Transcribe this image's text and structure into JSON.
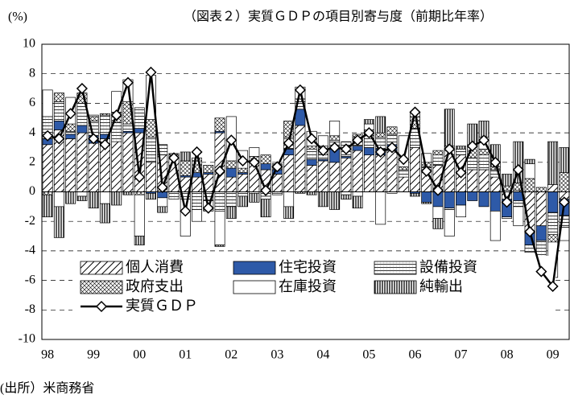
{
  "chart_data": {
    "type": "stacked_bar_line",
    "title": "（図表２）実質ＧＤＰの項目別寄与度（前期比年率）",
    "y_label": "(%)",
    "source": "(出所）米商務省",
    "categories": [
      "98",
      null,
      null,
      null,
      "99",
      null,
      null,
      null,
      "00",
      null,
      null,
      null,
      "01",
      null,
      null,
      null,
      "02",
      null,
      null,
      null,
      "03",
      null,
      null,
      null,
      "04",
      null,
      null,
      null,
      "05",
      null,
      null,
      null,
      "06",
      null,
      null,
      null,
      "07",
      null,
      null,
      null,
      "08",
      null,
      null,
      null,
      "09",
      null
    ],
    "ylim": [
      -10,
      10
    ],
    "yticks": [
      -10,
      -8,
      -6,
      -4,
      -2,
      0,
      2,
      4,
      6,
      8,
      10
    ],
    "grid": true,
    "series": [
      {
        "name": "個人消費",
        "kind": "bar",
        "color": "#000000",
        "pattern": "diagonal",
        "values": [
          3.2,
          4.2,
          3.6,
          4.0,
          3.3,
          3.6,
          3.4,
          4.0,
          4.0,
          2.0,
          2.5,
          2.3,
          1.0,
          1.0,
          1.2,
          4.0,
          1.0,
          1.2,
          2.0,
          1.5,
          1.2,
          2.5,
          4.5,
          1.8,
          2.1,
          2.0,
          2.3,
          2.8,
          2.5,
          2.5,
          2.8,
          1.0,
          3.0,
          1.5,
          1.8,
          2.8,
          2.5,
          1.5,
          1.5,
          1.0,
          -0.5,
          0.1,
          -2.8,
          -2.3,
          0.5,
          -0.5
        ]
      },
      {
        "name": "住宅投資",
        "kind": "bar",
        "color": "#2e5aa8",
        "pattern": "solid",
        "values": [
          0.4,
          0.6,
          0.3,
          0.5,
          0.5,
          0.3,
          0.0,
          0.1,
          0.3,
          -0.1,
          -0.4,
          0.0,
          0.1,
          0.3,
          0.1,
          0.1,
          0.6,
          0.1,
          0.1,
          0.4,
          0.3,
          0.4,
          1.1,
          0.4,
          0.1,
          0.9,
          0.1,
          0.3,
          0.5,
          0.4,
          0.4,
          0.0,
          -0.1,
          -0.7,
          -1.0,
          -1.1,
          -0.9,
          -0.6,
          -1.0,
          -1.3,
          -1.2,
          -0.6,
          -0.8,
          -1.0,
          -1.4,
          -1.1
        ]
      },
      {
        "name": "設備投資",
        "kind": "bar",
        "color": "#000000",
        "pattern": "horizontal",
        "values": [
          1.5,
          1.3,
          0.2,
          1.5,
          1.0,
          1.3,
          1.3,
          0.5,
          1.4,
          1.7,
          0.7,
          -0.5,
          -0.5,
          -1.2,
          -0.6,
          -1.3,
          -1.0,
          -0.3,
          -0.1,
          -0.3,
          -0.1,
          0.8,
          0.5,
          0.7,
          0.3,
          0.6,
          1.0,
          0.6,
          0.8,
          0.8,
          0.7,
          0.5,
          1.3,
          0.2,
          0.7,
          -0.1,
          0.4,
          0.8,
          1.0,
          0.5,
          0.1,
          -0.4,
          -0.5,
          -1.5,
          -1.5,
          -0.8
        ]
      },
      {
        "name": "政府支出",
        "kind": "bar",
        "color": "#000000",
        "pattern": "cross",
        "values": [
          -0.2,
          0.6,
          0.5,
          0.7,
          0.3,
          0.1,
          0.7,
          1.5,
          -0.2,
          1.2,
          0.0,
          0.2,
          1.0,
          1.0,
          0.5,
          0.9,
          0.5,
          0.3,
          0.3,
          0.6,
          0.2,
          1.1,
          0.2,
          0.2,
          0.6,
          0.3,
          0.0,
          0.2,
          0.4,
          0.3,
          0.5,
          0.2,
          0.8,
          0.3,
          0.3,
          0.3,
          0.0,
          0.8,
          0.4,
          0.2,
          0.3,
          0.5,
          0.9,
          0.3,
          -0.5,
          1.3
        ]
      },
      {
        "name": "在庫投資",
        "kind": "bar",
        "color": "#ffffff",
        "pattern": "solid",
        "values": [
          1.8,
          -1.0,
          1.8,
          -0.3,
          0.1,
          -0.8,
          1.4,
          1.5,
          -2.8,
          3.0,
          -0.6,
          0.0,
          -2.5,
          -0.8,
          -0.5,
          -2.3,
          3.0,
          1.2,
          0.6,
          -0.2,
          -0.1,
          -1.0,
          0.8,
          1.0,
          0.7,
          1.0,
          -0.2,
          -0.3,
          0.4,
          -2.2,
          -0.1,
          2.1,
          0.3,
          0.6,
          -0.8,
          -1.8,
          -0.8,
          0.1,
          0.8,
          -2.0,
          -0.1,
          -1.3,
          1.0,
          -0.7,
          -2.4,
          -0.9
        ]
      },
      {
        "name": "純輸出",
        "kind": "bar",
        "color": "#000000",
        "pattern": "vertical",
        "values": [
          -1.5,
          -2.1,
          -0.8,
          -0.3,
          -1.1,
          -1.3,
          -0.9,
          -0.2,
          -0.6,
          -0.4,
          -0.4,
          0.1,
          0.6,
          0.0,
          -0.2,
          -0.1,
          -0.8,
          -0.7,
          -0.6,
          -1.2,
          0.2,
          -0.8,
          -0.1,
          -0.2,
          -1.0,
          -1.2,
          -0.3,
          -0.8,
          0.3,
          1.1,
          0.0,
          0.0,
          -0.2,
          -0.1,
          -0.7,
          2.5,
          0.2,
          1.4,
          1.1,
          1.5,
          0.8,
          2.8,
          0.3,
          -0.4,
          2.9,
          1.7
        ]
      },
      {
        "name": "実質ＧＤＰ",
        "kind": "line",
        "color": "#000000",
        "values": [
          3.8,
          3.6,
          5.3,
          7.0,
          3.6,
          3.2,
          5.2,
          7.4,
          1.0,
          8.1,
          0.3,
          2.3,
          -1.3,
          2.7,
          -1.1,
          1.4,
          3.5,
          2.1,
          2.0,
          0.1,
          1.7,
          3.3,
          6.9,
          3.6,
          2.8,
          3.0,
          2.9,
          3.5,
          4.0,
          2.7,
          3.0,
          2.2,
          5.4,
          1.4,
          0.1,
          2.9,
          1.3,
          3.1,
          3.5,
          2.0,
          -0.7,
          1.5,
          -2.7,
          -5.4,
          -6.4,
          -0.7
        ]
      }
    ]
  }
}
